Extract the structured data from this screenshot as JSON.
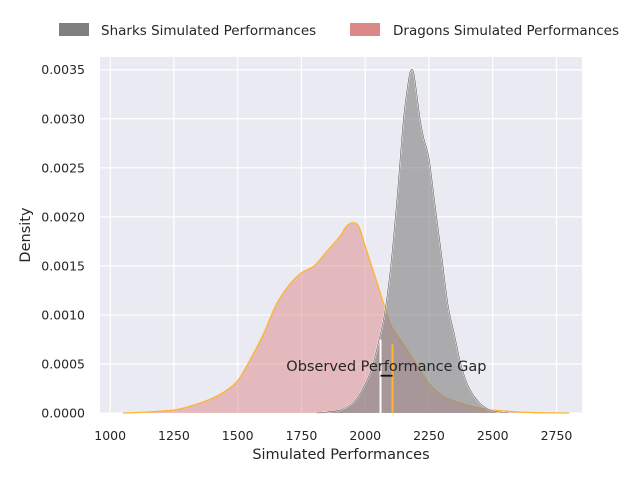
{
  "chart_data": {
    "type": "area",
    "xlabel": "Simulated Performances",
    "ylabel": "Density",
    "xlim": [
      960,
      2850
    ],
    "ylim": [
      0,
      0.00363
    ],
    "x_ticks": [
      1000,
      1250,
      1500,
      1750,
      2000,
      2250,
      2500,
      2750
    ],
    "x_tick_labels": [
      "1000",
      "1250",
      "1500",
      "1750",
      "2000",
      "2250",
      "2500",
      "2750"
    ],
    "y_ticks": [
      0,
      0.0005,
      0.001,
      0.0015,
      0.002,
      0.0025,
      0.003,
      0.0035
    ],
    "y_tick_labels": [
      "0.0000",
      "0.0005",
      "0.0010",
      "0.0015",
      "0.0020",
      "0.0025",
      "0.0030",
      "0.0035"
    ],
    "grid": true,
    "legend_position": "top",
    "series": [
      {
        "name": "Sharks Simulated Performances",
        "fill_color": "#808080",
        "line_color": "#ffffff",
        "x": [
          1810,
          1850,
          1900,
          1950,
          1975,
          2000,
          2025,
          2050,
          2075,
          2100,
          2125,
          2150,
          2170,
          2180,
          2190,
          2200,
          2215,
          2230,
          2250,
          2275,
          2300,
          2325,
          2350,
          2375,
          2400,
          2425,
          2450,
          2475,
          2500,
          2530,
          2560
        ],
        "y": [
          0,
          1e-05,
          3e-05,
          0.0001,
          0.00018,
          0.0003,
          0.00045,
          0.0007,
          0.001,
          0.0015,
          0.0022,
          0.003,
          0.0034,
          0.0035,
          0.00347,
          0.0033,
          0.003,
          0.0028,
          0.0026,
          0.0021,
          0.0016,
          0.0011,
          0.0008,
          0.0005,
          0.0003,
          0.00018,
          0.0001,
          5e-05,
          2e-05,
          1e-05,
          0
        ]
      },
      {
        "name": "Dragons Simulated Performances",
        "fill_color": "#dd8888",
        "line_color": "#ffb530",
        "x": [
          1050,
          1150,
          1250,
          1300,
          1350,
          1400,
          1450,
          1500,
          1550,
          1600,
          1650,
          1700,
          1750,
          1800,
          1850,
          1900,
          1925,
          1950,
          1975,
          2000,
          2050,
          2100,
          2150,
          2200,
          2250,
          2300,
          2350,
          2400,
          2450,
          2500,
          2550,
          2600,
          2650,
          2700,
          2800
        ],
        "y": [
          0,
          1e-05,
          3e-05,
          6e-05,
          0.0001,
          0.00015,
          0.00022,
          0.00033,
          0.00055,
          0.0008,
          0.0011,
          0.0013,
          0.00143,
          0.0015,
          0.00165,
          0.0018,
          0.0019,
          0.00194,
          0.0019,
          0.0017,
          0.0013,
          0.0009,
          0.0007,
          0.0005,
          0.0003,
          0.00018,
          0.00012,
          8e-05,
          5e-05,
          3e-05,
          2e-05,
          1e-05,
          5e-06,
          2e-06,
          0
        ]
      }
    ],
    "markers": [
      {
        "name": "Sharks observed",
        "x": 2060,
        "y_top": 0.00075,
        "color": "#ffffff"
      },
      {
        "name": "Dragons observed",
        "x": 2107,
        "y_top": 0.0007,
        "color": "#ffb530"
      }
    ],
    "annotation": {
      "text": "Observed Performance Gap",
      "x": 2083,
      "y": 0.00043
    },
    "gap_bracket": {
      "x1": 2060,
      "x2": 2107,
      "y": 0.00038
    }
  }
}
